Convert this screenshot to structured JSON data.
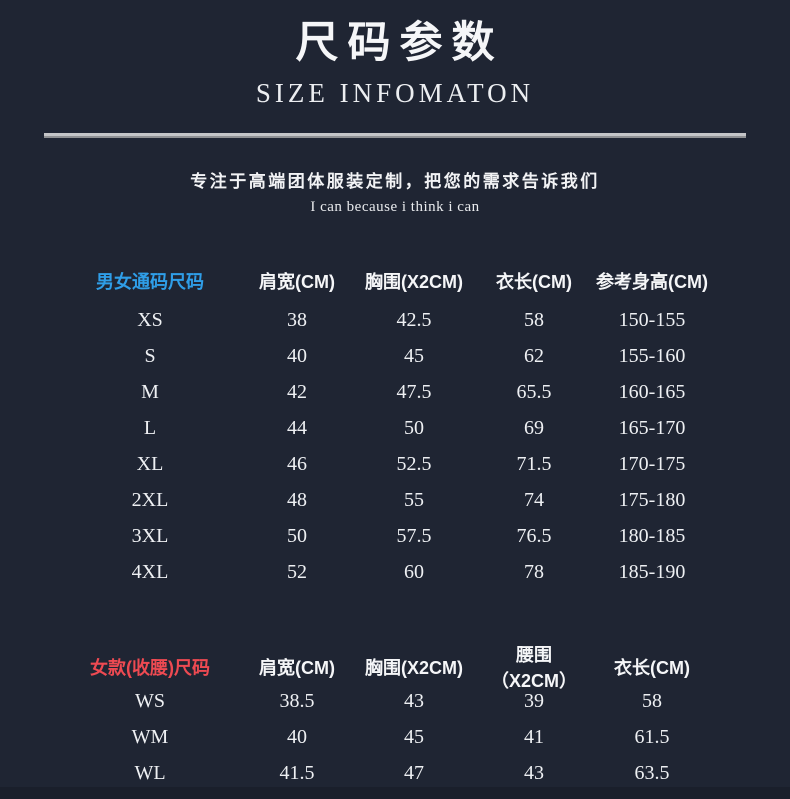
{
  "page": {
    "title": "尺码参数",
    "subtitle": "SIZE INFOMATON",
    "tagline": "专注于高端团体服装定制，把您的需求告诉我们",
    "tagline_en": "I can because i think i can"
  },
  "colors": {
    "background": "#1f2533",
    "unisex_accent": "#2f9ee8",
    "women_accent": "#ee4a52",
    "divider": "#9b9da0",
    "text": "#f0f2f4"
  },
  "unisex_table": {
    "label": "男女通码尺码",
    "columns": [
      "肩宽(CM)",
      "胸围(X2CM)",
      "衣长(CM)",
      "参考身高(CM)"
    ],
    "rows": [
      {
        "size": "XS",
        "values": [
          "38",
          "42.5",
          "58",
          "150-155"
        ]
      },
      {
        "size": "S",
        "values": [
          "40",
          "45",
          "62",
          "155-160"
        ]
      },
      {
        "size": "M",
        "values": [
          "42",
          "47.5",
          "65.5",
          "160-165"
        ]
      },
      {
        "size": "L",
        "values": [
          "44",
          "50",
          "69",
          "165-170"
        ]
      },
      {
        "size": "XL",
        "values": [
          "46",
          "52.5",
          "71.5",
          "170-175"
        ]
      },
      {
        "size": "2XL",
        "values": [
          "48",
          "55",
          "74",
          "175-180"
        ]
      },
      {
        "size": "3XL",
        "values": [
          "50",
          "57.5",
          "76.5",
          "180-185"
        ]
      },
      {
        "size": "4XL",
        "values": [
          "52",
          "60",
          "78",
          "185-190"
        ]
      }
    ]
  },
  "women_table": {
    "label": "女款(收腰)尺码",
    "columns": [
      "肩宽(CM)",
      "胸围(X2CM)",
      "腰围（X2CM）",
      "衣长(CM)"
    ],
    "rows": [
      {
        "size": "WS",
        "values": [
          "38.5",
          "43",
          "39",
          "58"
        ]
      },
      {
        "size": "WM",
        "values": [
          "40",
          "45",
          "41",
          "61.5"
        ]
      },
      {
        "size": "WL",
        "values": [
          "41.5",
          "47",
          "43",
          "63.5"
        ]
      }
    ]
  }
}
